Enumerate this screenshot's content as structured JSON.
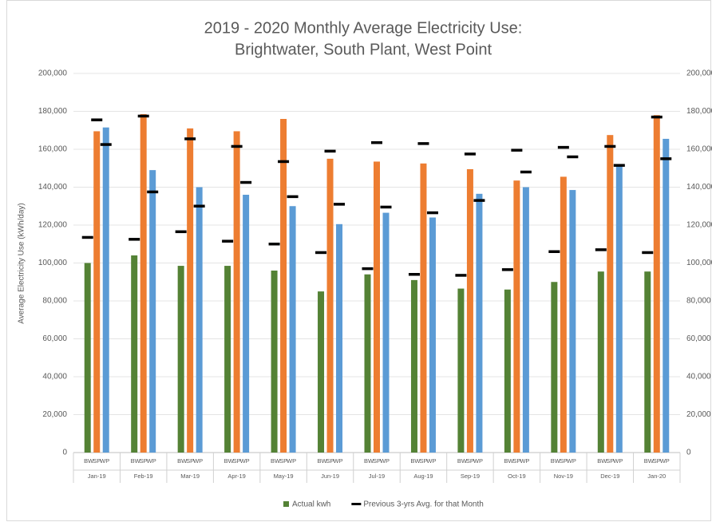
{
  "chart_data": {
    "type": "bar",
    "title": [
      "2019 - 2020 Monthly Average Electricity Use:",
      "Brightwater, South Plant, West Point"
    ],
    "y_label": "Average Electricity Use (kWh/day)",
    "categories": [
      "Jan-19",
      "Feb-19",
      "Mar-19",
      "Apr-19",
      "May-19",
      "Jun-19",
      "Jul-19",
      "Aug-19",
      "Sep-19",
      "Oct-19",
      "Nov-19",
      "Dec-19",
      "Jan-20"
    ],
    "sub_categories": [
      "BW",
      "SP",
      "WP"
    ],
    "series": [
      {
        "name": "Actual kwh",
        "type": "bar",
        "color": "#548235",
        "colors": [
          "#548235",
          "#ed7d31",
          "#5b9bd5"
        ],
        "values": [
          [
            100000,
            169500,
            171500
          ],
          [
            104000,
            178500,
            149000
          ],
          [
            98500,
            171000,
            140000
          ],
          [
            98500,
            169500,
            136000
          ],
          [
            96000,
            176000,
            130000
          ],
          [
            85000,
            155000,
            120500
          ],
          [
            94000,
            153500,
            126500
          ],
          [
            91000,
            152500,
            124000
          ],
          [
            86500,
            149500,
            136500
          ],
          [
            86000,
            143500,
            140000
          ],
          [
            90000,
            145500,
            138500
          ],
          [
            95500,
            167500,
            152000
          ],
          [
            95500,
            178000,
            165500
          ]
        ]
      },
      {
        "name": "Previous 3-yrs Avg. for that Month",
        "type": "marker",
        "color": "#000000",
        "values": [
          [
            113500,
            175500,
            162500
          ],
          [
            112500,
            177500,
            137500
          ],
          [
            116500,
            165500,
            130000
          ],
          [
            111500,
            161500,
            142500
          ],
          [
            110000,
            153500,
            135000
          ],
          [
            105500,
            159000,
            131000
          ],
          [
            97000,
            163500,
            129500
          ],
          [
            94000,
            163000,
            126500
          ],
          [
            93500,
            157500,
            133000
          ],
          [
            96500,
            159500,
            148000
          ],
          [
            106000,
            161000,
            156000
          ],
          [
            107000,
            161500,
            151500
          ],
          [
            105500,
            177000,
            155000
          ]
        ]
      }
    ],
    "ylim": [
      0,
      200000
    ],
    "yticks": [
      0,
      {
        "value": 20000,
        "label": "20,000"
      },
      {
        "value": 40000,
        "label": "40,000"
      },
      {
        "value": 60000,
        "label": "60,000"
      },
      {
        "value": 80000,
        "label": "80,000"
      },
      {
        "value": 100000,
        "label": "100,000"
      },
      {
        "value": 120000,
        "label": "120,000"
      },
      {
        "value": 140000,
        "label": "140,000"
      },
      {
        "value": 160000,
        "label": "160,000"
      },
      {
        "value": 180000,
        "label": "180,000"
      },
      {
        "value": 200000,
        "label": "200,000"
      }
    ],
    "y2lim": [
      0,
      200000
    ],
    "y2ticks": [
      0,
      {
        "value": 20000,
        "label": "20,000"
      },
      {
        "value": 40000,
        "label": "40,000"
      },
      {
        "value": 60000,
        "label": "60,000"
      },
      {
        "value": 80000,
        "label": "80,000"
      },
      {
        "value": 100000,
        "label": "100,000"
      },
      {
        "value": 120000,
        "label": "120,000"
      },
      {
        "value": 140000,
        "label": "140,000"
      },
      {
        "value": 160000,
        "label": "160,000"
      },
      {
        "value": 180000,
        "label": "180,000"
      },
      {
        "value": 200000,
        "label": "200,000"
      }
    ],
    "grid": true,
    "legend": "bottom"
  }
}
